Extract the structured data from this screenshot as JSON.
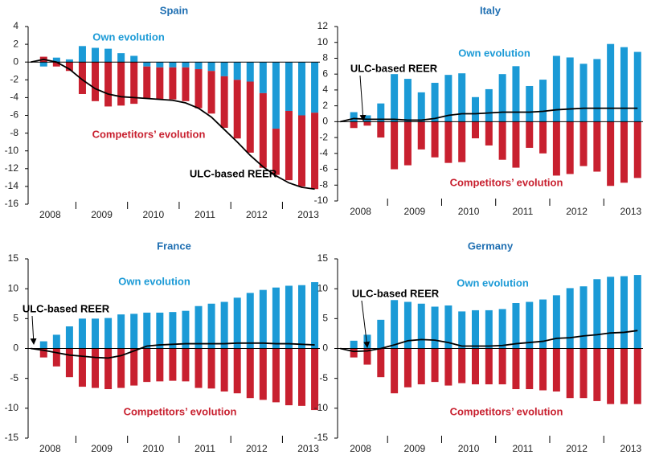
{
  "chart_data": [
    {
      "type": "bar",
      "title": "Spain",
      "x": [
        2008,
        2008.25,
        2008.5,
        2008.75,
        2009,
        2009.25,
        2009.5,
        2009.75,
        2010,
        2010.25,
        2010.5,
        2010.75,
        2011,
        2011.25,
        2011.5,
        2011.75,
        2012,
        2012.25,
        2012.5,
        2012.75,
        2013,
        2013.25,
        2013.5
      ],
      "xlim": [
        2007.95,
        2013.6
      ],
      "xticks": [
        {
          "value": 2008.375,
          "label": "2008"
        },
        {
          "value": 2009.375,
          "label": "2009"
        },
        {
          "value": 2010.375,
          "label": "2010"
        },
        {
          "value": 2011.375,
          "label": "2011"
        },
        {
          "value": 2012.375,
          "label": "2012"
        },
        {
          "value": 2013.375,
          "label": "2013"
        }
      ],
      "ylim": [
        -16,
        4
      ],
      "yticks": [
        4,
        2,
        0,
        -2,
        -4,
        -6,
        -8,
        -10,
        -12,
        -14,
        -16
      ],
      "series": [
        {
          "name": "Own evolution",
          "type": "bar",
          "color": "#1b9ad6",
          "values": [
            null,
            -0.5,
            0.5,
            0.3,
            1.8,
            1.6,
            1.5,
            1.0,
            0.7,
            -0.5,
            -0.6,
            -0.6,
            -0.6,
            -0.8,
            -1.0,
            -1.6,
            -2.0,
            -2.2,
            -3.5,
            -7.5,
            -5.5,
            -6.0,
            -5.7
          ]
        },
        {
          "name": "Competitors’ evolution",
          "type": "bar",
          "color": "#c8202f",
          "values": [
            null,
            0.6,
            -0.5,
            -1.0,
            -3.6,
            -4.4,
            -5.0,
            -4.9,
            -4.7,
            -3.6,
            -3.6,
            -3.6,
            -3.8,
            -4.4,
            -4.8,
            -5.8,
            -6.6,
            -8.0,
            -8.4,
            -5.2,
            -7.8,
            -8.0,
            -8.6
          ]
        },
        {
          "name": "ULC-based REER",
          "type": "line",
          "color": "#000000",
          "values": [
            0,
            0.3,
            0,
            -0.8,
            -2.0,
            -3.0,
            -3.6,
            -3.9,
            -4.0,
            -4.1,
            -4.2,
            -4.3,
            -4.6,
            -5.2,
            -6.2,
            -7.6,
            -9.0,
            -10.5,
            -11.8,
            -12.8,
            -13.6,
            -14.1,
            -14.3
          ]
        }
      ]
    },
    {
      "type": "bar",
      "title": "Italy",
      "x": [
        2008,
        2008.25,
        2008.5,
        2008.75,
        2009,
        2009.25,
        2009.5,
        2009.75,
        2010,
        2010.25,
        2010.5,
        2010.75,
        2011,
        2011.25,
        2011.5,
        2011.75,
        2012,
        2012.25,
        2012.5,
        2012.75,
        2013,
        2013.25,
        2013.5
      ],
      "xlim": [
        2007.95,
        2013.6
      ],
      "xticks": [
        {
          "value": 2008.375,
          "label": "2008"
        },
        {
          "value": 2009.375,
          "label": "2009"
        },
        {
          "value": 2010.375,
          "label": "2010"
        },
        {
          "value": 2011.375,
          "label": "2011"
        },
        {
          "value": 2012.375,
          "label": "2012"
        },
        {
          "value": 2013.375,
          "label": "2013"
        }
      ],
      "ylim": [
        -10,
        12
      ],
      "yticks": [
        12,
        10,
        8,
        6,
        4,
        2,
        0,
        -2,
        -4,
        -6,
        -8,
        -10
      ],
      "series": [
        {
          "name": "Own evolution",
          "type": "bar",
          "color": "#1b9ad6",
          "values": [
            null,
            1.2,
            0.8,
            2.3,
            6.0,
            5.4,
            3.7,
            4.9,
            5.9,
            6.1,
            3.1,
            4.1,
            6.0,
            7.0,
            4.5,
            5.3,
            8.3,
            8.1,
            7.3,
            7.9,
            9.8,
            9.4,
            8.8
          ]
        },
        {
          "name": "Competitors’ evolution",
          "type": "bar",
          "color": "#c8202f",
          "values": [
            null,
            -0.8,
            -0.5,
            -2.0,
            -6.0,
            -5.5,
            -3.5,
            -4.5,
            -5.2,
            -5.1,
            -2.1,
            -3.0,
            -4.8,
            -5.8,
            -3.3,
            -4.0,
            -6.8,
            -6.6,
            -5.6,
            -6.3,
            -8.1,
            -7.7,
            -7.1
          ]
        },
        {
          "name": "ULC-based REER",
          "type": "line",
          "color": "#000000",
          "values": [
            0,
            0.4,
            0.3,
            0.3,
            0.3,
            0.2,
            0.2,
            0.4,
            0.8,
            1.0,
            1.0,
            1.1,
            1.2,
            1.2,
            1.2,
            1.3,
            1.5,
            1.6,
            1.7,
            1.7,
            1.7,
            1.7,
            1.7
          ]
        }
      ]
    },
    {
      "type": "bar",
      "title": "France",
      "x": [
        2008,
        2008.25,
        2008.5,
        2008.75,
        2009,
        2009.25,
        2009.5,
        2009.75,
        2010,
        2010.25,
        2010.5,
        2010.75,
        2011,
        2011.25,
        2011.5,
        2011.75,
        2012,
        2012.25,
        2012.5,
        2012.75,
        2013,
        2013.25,
        2013.5
      ],
      "xlim": [
        2007.95,
        2013.6
      ],
      "xticks": [
        {
          "value": 2008.375,
          "label": "2008"
        },
        {
          "value": 2009.375,
          "label": "2009"
        },
        {
          "value": 2010.375,
          "label": "2010"
        },
        {
          "value": 2011.375,
          "label": "2011"
        },
        {
          "value": 2012.375,
          "label": "2012"
        },
        {
          "value": 2013.375,
          "label": "2013"
        }
      ],
      "ylim": [
        -15,
        15
      ],
      "yticks": [
        15,
        10,
        5,
        0,
        -5,
        -10,
        -15
      ],
      "series": [
        {
          "name": "Own evolution",
          "type": "bar",
          "color": "#1b9ad6",
          "values": [
            null,
            1.2,
            2.3,
            3.7,
            5.0,
            5.0,
            5.1,
            5.7,
            5.8,
            6.0,
            6.0,
            6.1,
            6.3,
            7.1,
            7.5,
            7.8,
            8.5,
            9.3,
            9.8,
            10.2,
            10.5,
            10.6,
            11.1
          ]
        },
        {
          "name": "Competitors’ evolution",
          "type": "bar",
          "color": "#c8202f",
          "values": [
            null,
            -1.5,
            -3.0,
            -4.8,
            -6.4,
            -6.6,
            -6.8,
            -6.6,
            -6.2,
            -5.6,
            -5.5,
            -5.4,
            -5.5,
            -6.6,
            -6.7,
            -7.2,
            -7.5,
            -8.3,
            -8.6,
            -9.0,
            -9.5,
            -9.6,
            -10.3
          ]
        },
        {
          "name": "ULC-based REER",
          "type": "line",
          "color": "#000000",
          "values": [
            0,
            -0.3,
            -0.7,
            -1.1,
            -1.3,
            -1.5,
            -1.6,
            -1.2,
            -0.4,
            0.4,
            0.6,
            0.7,
            0.8,
            0.8,
            0.8,
            0.8,
            0.9,
            0.9,
            0.9,
            0.8,
            0.8,
            0.7,
            0.6
          ]
        }
      ]
    },
    {
      "type": "bar",
      "title": "Germany",
      "x": [
        2008,
        2008.25,
        2008.5,
        2008.75,
        2009,
        2009.25,
        2009.5,
        2009.75,
        2010,
        2010.25,
        2010.5,
        2010.75,
        2011,
        2011.25,
        2011.5,
        2011.75,
        2012,
        2012.25,
        2012.5,
        2012.75,
        2013,
        2013.25,
        2013.5
      ],
      "xlim": [
        2007.95,
        2013.6
      ],
      "xticks": [
        {
          "value": 2008.375,
          "label": "2008"
        },
        {
          "value": 2009.375,
          "label": "2009"
        },
        {
          "value": 2010.375,
          "label": "2010"
        },
        {
          "value": 2011.375,
          "label": "2011"
        },
        {
          "value": 2012.375,
          "label": "2012"
        },
        {
          "value": 2013.375,
          "label": "2013"
        }
      ],
      "ylim": [
        -15,
        15
      ],
      "yticks": [
        15,
        10,
        5,
        0,
        -5,
        -10,
        -15
      ],
      "series": [
        {
          "name": "Own evolution",
          "type": "bar",
          "color": "#1b9ad6",
          "values": [
            null,
            1.3,
            2.3,
            4.8,
            8.1,
            7.8,
            7.5,
            7.0,
            7.2,
            6.2,
            6.4,
            6.4,
            6.6,
            7.6,
            7.8,
            8.2,
            8.9,
            10.1,
            10.4,
            11.6,
            12.0,
            12.1,
            12.3
          ]
        },
        {
          "name": "Competitors’ evolution",
          "type": "bar",
          "color": "#c8202f",
          "values": [
            null,
            -1.5,
            -2.7,
            -4.8,
            -7.5,
            -6.5,
            -6.0,
            -5.6,
            -6.2,
            -5.8,
            -6.0,
            -6.0,
            -6.0,
            -6.8,
            -6.8,
            -7.0,
            -7.2,
            -8.3,
            -8.3,
            -8.8,
            -9.3,
            -9.3,
            -9.3
          ]
        },
        {
          "name": "ULC-based REER",
          "type": "line",
          "color": "#000000",
          "values": [
            0,
            -0.5,
            -0.4,
            0,
            0.6,
            1.3,
            1.5,
            1.4,
            1.0,
            0.4,
            0.4,
            0.4,
            0.5,
            0.8,
            1.0,
            1.2,
            1.7,
            1.8,
            2.1,
            2.3,
            2.6,
            2.7,
            3.0
          ]
        }
      ]
    }
  ]
}
